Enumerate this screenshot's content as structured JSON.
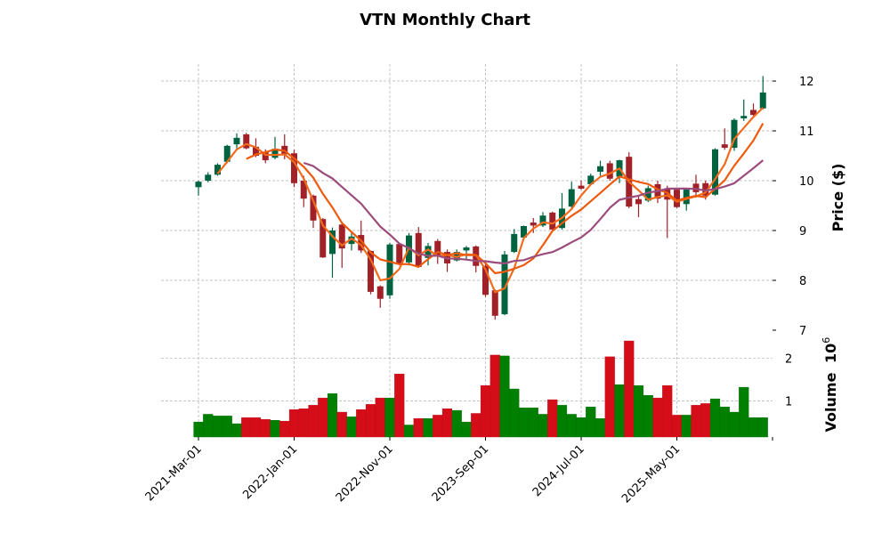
{
  "chart_data": {
    "type": "candlestick",
    "title": "VTN Monthly Chart",
    "ylabel": "Price ($)",
    "volume_label": "Volume",
    "volume_exponent": "10",
    "volume_exponent_power": "6",
    "xtick_labels": [
      "2021-Mar-01",
      "2022-Jan-01",
      "2022-Nov-01",
      "2023-Sep-01",
      "2024-Jul-01",
      "2025-May-01"
    ],
    "price_ticks": [
      "7",
      "8",
      "9",
      "10",
      "11",
      "12"
    ],
    "volume_ticks": [
      "1",
      "2"
    ],
    "price_ylim": [
      7,
      12.34
    ],
    "volume_ylim": [
      0.16,
      2.65
    ],
    "grid": true,
    "moving_averages": [
      3,
      6,
      12
    ],
    "colors": {
      "up": "#006340",
      "down": "#a02128",
      "vol_up": "#007f00",
      "vol_down": "#d50d18",
      "ma3": "#f26b1d",
      "ma6": "#ee5a0c",
      "ma12": "#9c4c7c"
    },
    "start_month": "2021-03",
    "open": [
      9.87,
      10.0,
      10.12,
      10.38,
      10.73,
      10.93,
      10.68,
      10.57,
      10.46,
      10.7,
      10.55,
      10.0,
      9.7,
      9.23,
      8.53,
      9.12,
      8.73,
      8.91,
      8.59,
      7.88,
      7.7,
      8.73,
      8.36,
      8.95,
      8.45,
      8.79,
      8.57,
      8.4,
      8.6,
      8.68,
      8.29,
      7.8,
      7.32,
      8.57,
      8.86,
      9.16,
      9.1,
      9.36,
      9.05,
      9.48,
      9.9,
      9.93,
      10.18,
      10.35,
      10.08,
      10.48,
      9.63,
      9.6,
      9.93,
      9.84,
      9.82,
      9.53,
      9.94,
      9.95,
      9.72,
      10.73,
      10.66,
      11.25,
      11.42,
      11.45
    ],
    "high": [
      10.0,
      10.17,
      10.35,
      10.72,
      10.95,
      10.96,
      10.85,
      10.63,
      10.88,
      10.93,
      10.62,
      10.1,
      9.72,
      9.25,
      9.06,
      9.15,
      8.97,
      9.2,
      8.6,
      7.9,
      8.75,
      8.75,
      8.95,
      9.07,
      8.75,
      8.83,
      8.62,
      8.62,
      8.69,
      8.7,
      8.35,
      7.82,
      8.59,
      9.03,
      9.1,
      9.25,
      9.37,
      9.38,
      9.75,
      9.98,
      10.0,
      10.14,
      10.4,
      10.4,
      10.42,
      10.57,
      9.7,
      9.9,
      10.0,
      9.9,
      9.85,
      9.85,
      10.12,
      10.0,
      10.65,
      11.05,
      11.25,
      11.63,
      11.55,
      12.1
    ],
    "low": [
      9.7,
      9.97,
      10.1,
      10.35,
      10.65,
      10.63,
      10.47,
      10.35,
      10.43,
      10.43,
      9.87,
      9.47,
      9.05,
      8.45,
      8.05,
      8.25,
      8.6,
      8.55,
      7.72,
      7.45,
      7.63,
      8.3,
      8.3,
      8.25,
      8.3,
      8.33,
      8.17,
      8.38,
      8.43,
      8.16,
      7.67,
      7.21,
      7.3,
      8.55,
      8.8,
      8.95,
      9.07,
      8.98,
      9.02,
      9.45,
      9.82,
      9.95,
      10.1,
      10.0,
      9.95,
      9.45,
      9.27,
      9.57,
      9.55,
      8.85,
      9.45,
      9.4,
      9.66,
      9.62,
      9.7,
      10.62,
      10.6,
      11.2,
      11.3,
      11.43
    ],
    "close": [
      9.98,
      10.12,
      10.32,
      10.7,
      10.86,
      10.65,
      10.5,
      10.41,
      10.64,
      10.53,
      9.95,
      9.64,
      9.2,
      8.46,
      9.0,
      8.64,
      8.88,
      8.6,
      7.77,
      7.63,
      8.72,
      8.34,
      8.9,
      8.27,
      8.69,
      8.5,
      8.34,
      8.57,
      8.66,
      8.29,
      7.71,
      7.29,
      8.52,
      8.93,
      9.09,
      9.1,
      9.3,
      9.02,
      9.44,
      9.83,
      9.84,
      10.1,
      10.29,
      10.04,
      10.41,
      9.48,
      9.53,
      9.85,
      9.64,
      9.62,
      9.47,
      9.82,
      9.77,
      9.7,
      10.63,
      10.66,
      11.22,
      11.3,
      11.32,
      11.77
    ],
    "volume": [
      0.51,
      0.69,
      0.65,
      0.65,
      0.47,
      0.61,
      0.61,
      0.57,
      0.55,
      0.53,
      0.8,
      0.82,
      0.9,
      1.07,
      1.17,
      0.74,
      0.63,
      0.8,
      0.92,
      1.07,
      1.07,
      1.63,
      0.44,
      0.59,
      0.59,
      0.67,
      0.82,
      0.78,
      0.51,
      0.71,
      1.36,
      2.07,
      2.05,
      1.28,
      0.84,
      0.84,
      0.69,
      1.03,
      0.9,
      0.69,
      0.61,
      0.86,
      0.59,
      2.03,
      1.38,
      2.4,
      1.36,
      1.13,
      1.07,
      1.36,
      0.67,
      0.67,
      0.9,
      0.94,
      1.05,
      0.86,
      0.74,
      1.32,
      0.61,
      0.61
    ]
  }
}
